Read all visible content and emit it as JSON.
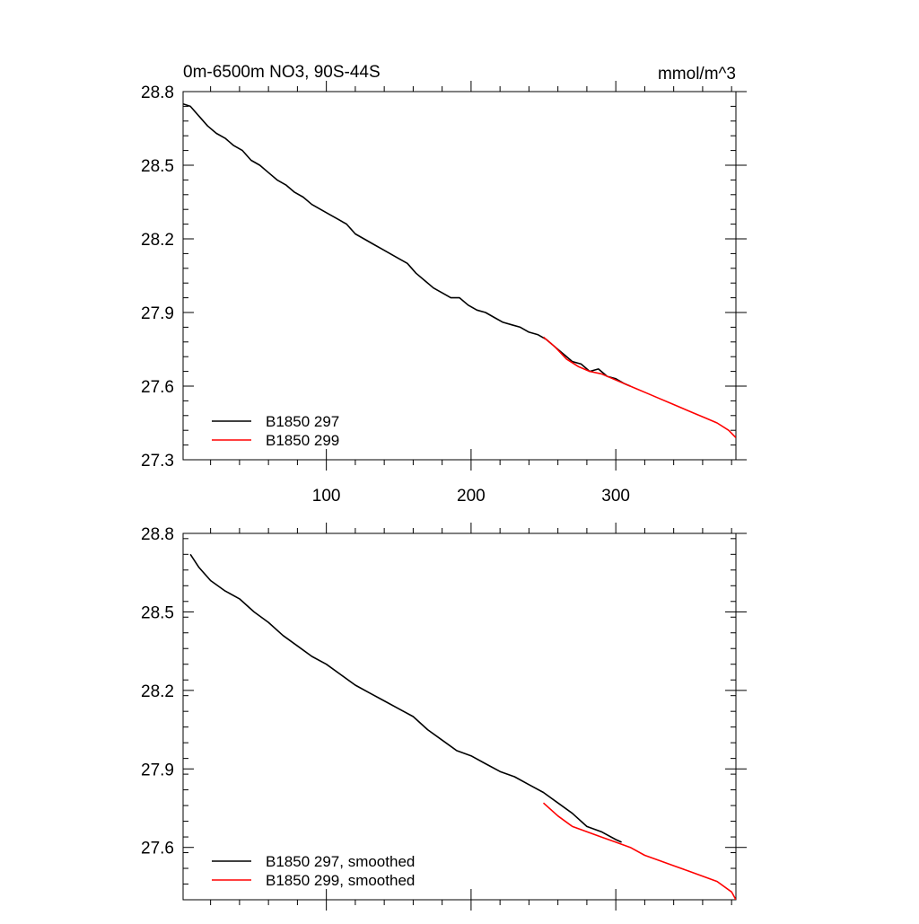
{
  "chart_data": [
    {
      "type": "line",
      "title": "0m-6500m NO3, 90S-44S",
      "units": "mmol/m^3",
      "xlim": [
        1,
        383
      ],
      "ylim": [
        27.3,
        28.8
      ],
      "xticks": [
        100,
        200,
        300
      ],
      "xtick_labels": [
        "100",
        "200",
        "300"
      ],
      "yticks": [
        27.3,
        27.6,
        27.9,
        28.2,
        28.5,
        28.8
      ],
      "ytick_labels": [
        "27.3",
        "27.6",
        "27.9",
        "28.2",
        "28.5",
        "28.8"
      ],
      "legend_position": "bottom-left",
      "series": [
        {
          "name": "B1850 297",
          "color": "#000000",
          "x": [
            1,
            6,
            12,
            18,
            24,
            30,
            36,
            42,
            48,
            54,
            60,
            66,
            72,
            78,
            84,
            90,
            96,
            102,
            108,
            114,
            120,
            126,
            132,
            138,
            144,
            150,
            156,
            162,
            168,
            174,
            180,
            186,
            192,
            198,
            204,
            210,
            216,
            222,
            228,
            234,
            240,
            246,
            252,
            258,
            264,
            270,
            276,
            282,
            288,
            294,
            300,
            306,
            310
          ],
          "y": [
            28.75,
            28.74,
            28.7,
            28.66,
            28.63,
            28.61,
            28.58,
            28.56,
            28.52,
            28.5,
            28.47,
            28.44,
            28.42,
            28.39,
            28.37,
            28.34,
            28.32,
            28.3,
            28.28,
            28.26,
            28.22,
            28.2,
            28.18,
            28.16,
            28.14,
            28.12,
            28.1,
            28.06,
            28.03,
            28.0,
            27.98,
            27.96,
            27.96,
            27.93,
            27.91,
            27.9,
            27.88,
            27.86,
            27.85,
            27.84,
            27.82,
            27.81,
            27.79,
            27.76,
            27.73,
            27.7,
            27.69,
            27.66,
            27.67,
            27.64,
            27.63,
            27.61,
            27.6
          ]
        },
        {
          "name": "B1850 299",
          "color": "#ff0000",
          "x": [
            250,
            258,
            266,
            274,
            282,
            290,
            298,
            306,
            314,
            322,
            330,
            338,
            346,
            354,
            362,
            370,
            378,
            383
          ],
          "y": [
            27.8,
            27.76,
            27.71,
            27.68,
            27.66,
            27.65,
            27.63,
            27.61,
            27.59,
            27.57,
            27.55,
            27.53,
            27.51,
            27.49,
            27.47,
            27.45,
            27.42,
            27.39
          ]
        }
      ]
    },
    {
      "type": "line",
      "title": "",
      "xlim": [
        1,
        383
      ],
      "ylim": [
        27.4,
        28.8
      ],
      "xticks": [
        100,
        200,
        300
      ],
      "yticks": [
        27.6,
        27.9,
        28.2,
        28.5,
        28.8
      ],
      "ytick_labels": [
        "27.6",
        "27.9",
        "28.2",
        "28.5",
        "28.8"
      ],
      "legend_position": "bottom-left",
      "series": [
        {
          "name": "B1850 297, smoothed",
          "color": "#000000",
          "x": [
            6,
            12,
            20,
            30,
            40,
            50,
            60,
            70,
            80,
            90,
            100,
            110,
            120,
            130,
            140,
            150,
            160,
            170,
            180,
            190,
            200,
            210,
            220,
            230,
            240,
            250,
            260,
            270,
            280,
            290,
            300,
            304
          ],
          "y": [
            28.72,
            28.67,
            28.62,
            28.58,
            28.55,
            28.5,
            28.46,
            28.41,
            28.37,
            28.33,
            28.3,
            28.26,
            28.22,
            28.19,
            28.16,
            28.13,
            28.1,
            28.05,
            28.01,
            27.97,
            27.95,
            27.92,
            27.89,
            27.87,
            27.84,
            27.81,
            27.77,
            27.73,
            27.68,
            27.66,
            27.63,
            27.62
          ]
        },
        {
          "name": "B1850 299, smoothed",
          "color": "#ff0000",
          "x": [
            250,
            260,
            270,
            280,
            290,
            300,
            310,
            320,
            330,
            340,
            350,
            360,
            370,
            380,
            383
          ],
          "y": [
            27.77,
            27.72,
            27.68,
            27.66,
            27.64,
            27.62,
            27.6,
            27.57,
            27.55,
            27.53,
            27.51,
            27.49,
            27.47,
            27.43,
            27.4
          ]
        }
      ]
    }
  ]
}
